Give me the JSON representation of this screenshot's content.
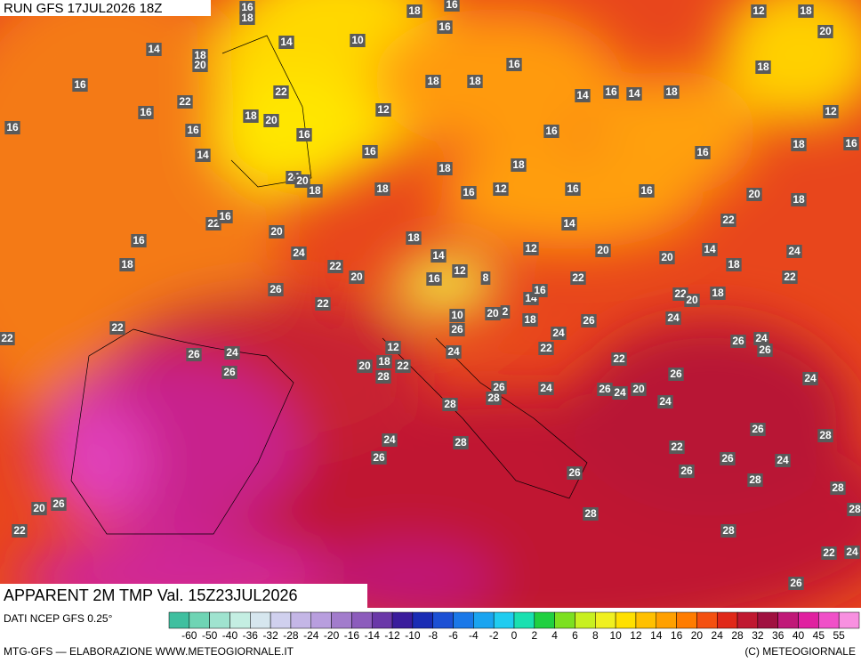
{
  "header": {
    "run": "RUN GFS 17JUL2026 18Z"
  },
  "map": {
    "title": "APPARENT 2M TMP Val. 15Z23JUL2026",
    "labels": [
      18,
      16,
      16,
      18,
      12,
      18,
      20,
      14,
      10,
      16,
      14,
      18,
      20,
      16,
      18,
      16,
      18,
      18,
      22,
      14,
      16,
      14,
      18,
      22,
      16,
      18,
      20,
      12,
      12,
      16,
      16,
      16,
      16,
      18,
      16,
      14,
      16,
      16,
      18,
      18,
      24,
      20,
      18,
      18,
      16,
      12,
      16,
      16,
      20,
      18,
      22,
      16,
      14,
      22,
      20,
      16,
      18,
      12,
      20,
      14,
      24,
      24,
      18,
      22,
      14,
      20,
      18,
      20,
      16,
      12,
      8,
      22,
      22,
      26,
      14,
      16,
      22,
      20,
      18,
      22,
      10,
      20,
      2,
      18,
      26,
      24,
      26,
      24,
      22,
      22,
      26,
      24,
      26,
      24,
      26,
      12,
      18,
      22,
      24,
      20,
      22,
      28,
      22,
      26,
      26,
      24,
      26,
      24,
      26,
      24,
      20,
      28,
      28,
      24,
      26,
      28,
      24,
      28,
      22,
      26,
      24,
      26,
      26,
      26,
      28,
      28,
      20,
      26,
      28,
      28,
      22,
      28,
      24,
      22,
      26
    ]
  },
  "footer": {
    "source": "DATI NCEP GFS 0.25°",
    "credits": "MTG-GFS — ELABORAZIONE WWW.METEOGIORNALE.IT",
    "copyright": "(C) METEOGIORNALE"
  },
  "colorbar": {
    "labels": [
      -60,
      -50,
      -40,
      -36,
      -32,
      -28,
      -24,
      -20,
      -16,
      -14,
      -12,
      -10,
      -8,
      -6,
      -4,
      -2,
      0,
      2,
      4,
      6,
      8,
      10,
      12,
      14,
      16,
      20,
      24,
      28,
      32,
      36,
      40,
      45,
      55
    ],
    "colors": [
      "#3fbf9f",
      "#6fd4b4",
      "#9fe3cf",
      "#c4eee2",
      "#d6e6ee",
      "#d0d0ee",
      "#c4b6e6",
      "#b89ede",
      "#a27ccc",
      "#8c5cbc",
      "#6a38a8",
      "#3a1c9c",
      "#1a2cb4",
      "#1c50d4",
      "#1a78e8",
      "#1aa4f0",
      "#20ccf0",
      "#1ae0b0",
      "#20d040",
      "#7ce020",
      "#c8f020",
      "#f0f020",
      "#ffe000",
      "#ffc000",
      "#ffa000",
      "#ff7c00",
      "#f45010",
      "#e02818",
      "#c01830",
      "#a01040",
      "#c01878",
      "#e020a0",
      "#f050c8",
      "#f890e0"
    ]
  }
}
